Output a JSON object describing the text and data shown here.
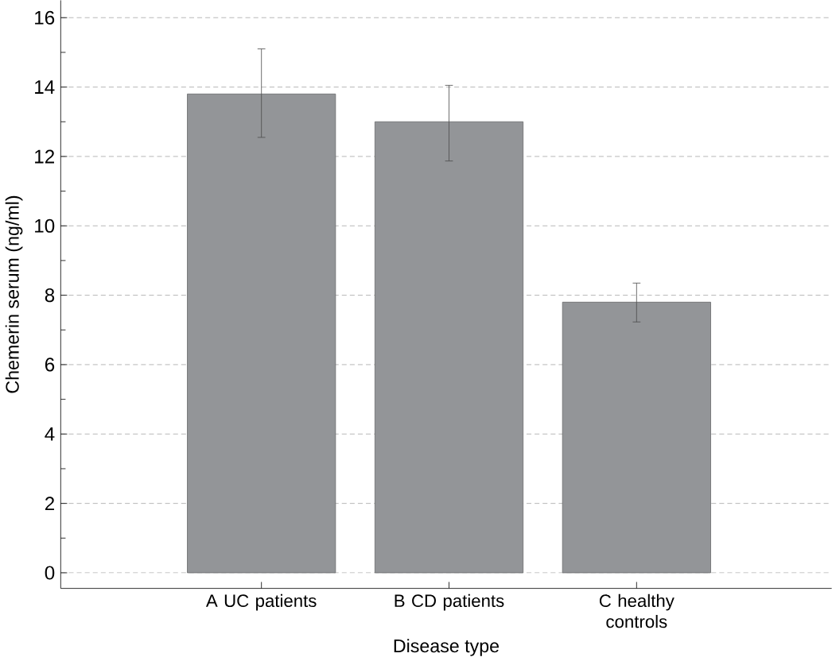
{
  "chart_data": {
    "type": "bar",
    "xlabel": "Disease type",
    "ylabel": "Chemerin serum (ng/ml)",
    "categories": [
      "A UC patients",
      "B CD patients",
      "C healthy controls"
    ],
    "values": [
      13.8,
      13.0,
      7.8
    ],
    "color": "#939598",
    "errors": [
      [
        12.55,
        15.1
      ],
      [
        11.87,
        14.05
      ],
      [
        7.23,
        8.35
      ]
    ],
    "ylim": [
      -0.45,
      16.5
    ],
    "yticks": [
      0,
      2,
      4,
      6,
      8,
      10,
      12,
      14,
      16
    ],
    "grid": "y"
  }
}
